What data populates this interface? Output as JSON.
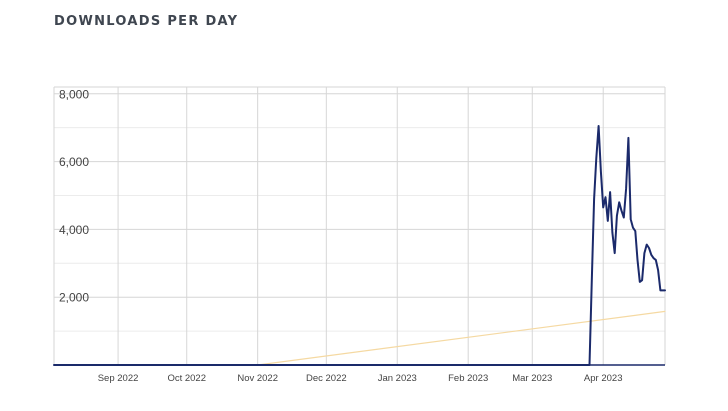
{
  "chart_data": {
    "type": "line",
    "title": "DOWNLOADS PER DAY",
    "xlabel": "",
    "ylabel": "",
    "ylim": [
      0,
      8200
    ],
    "xlim": [
      "2022-08-04",
      "2023-04-28"
    ],
    "y_ticks": [
      {
        "value": 2000,
        "label": "2,000"
      },
      {
        "value": 4000,
        "label": "4,000"
      },
      {
        "value": 6000,
        "label": "6,000"
      },
      {
        "value": 8000,
        "label": "8,000"
      }
    ],
    "x_ticks": [
      {
        "date": "2022-09-01",
        "label": "Sep 2022"
      },
      {
        "date": "2022-10-01",
        "label": "Oct 2022"
      },
      {
        "date": "2022-11-01",
        "label": "Nov 2022"
      },
      {
        "date": "2022-12-01",
        "label": "Dec 2022"
      },
      {
        "date": "2023-01-01",
        "label": "Jan 2023"
      },
      {
        "date": "2023-02-01",
        "label": "Feb 2023"
      },
      {
        "date": "2023-03-01",
        "label": "Mar 2023"
      },
      {
        "date": "2023-04-01",
        "label": "Apr 2023"
      }
    ],
    "grid": true,
    "series": [
      {
        "color": "#1b2a6b",
        "x": [
          "2022-08-04",
          "2023-03-01",
          "2023-03-26",
          "2023-03-27",
          "2023-03-28",
          "2023-03-29",
          "2023-03-30",
          "2023-03-31",
          "2023-04-01",
          "2023-04-02",
          "2023-04-03",
          "2023-04-04",
          "2023-04-05",
          "2023-04-06",
          "2023-04-07",
          "2023-04-08",
          "2023-04-09",
          "2023-04-10",
          "2023-04-11",
          "2023-04-12",
          "2023-04-13",
          "2023-04-14",
          "2023-04-15",
          "2023-04-16",
          "2023-04-17",
          "2023-04-18",
          "2023-04-19",
          "2023-04-20",
          "2023-04-21",
          "2023-04-22",
          "2023-04-23",
          "2023-04-24",
          "2023-04-25",
          "2023-04-26",
          "2023-04-27",
          "2023-04-28"
        ],
        "y": [
          0,
          0,
          0,
          2500,
          4900,
          6100,
          7050,
          5700,
          4650,
          4950,
          4250,
          5100,
          3900,
          3300,
          4400,
          4800,
          4550,
          4350,
          5200,
          6700,
          4300,
          4050,
          3950,
          3100,
          2450,
          2500,
          3300,
          3550,
          3450,
          3250,
          3150,
          3100,
          2800,
          2200,
          2200,
          2200
        ]
      },
      {
        "color": "#f5d9a2",
        "x": [
          "2022-11-01",
          "2023-04-28"
        ],
        "y": [
          0,
          1580
        ]
      }
    ]
  }
}
